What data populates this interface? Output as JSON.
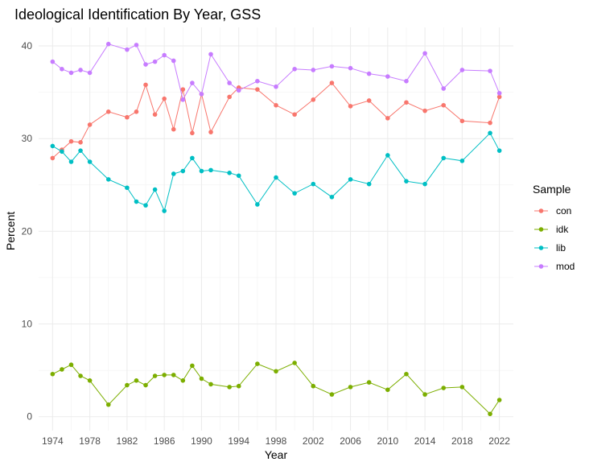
{
  "chart_data": {
    "type": "line",
    "title": "Ideological Identification By Year, GSS",
    "xlabel": "Year",
    "ylabel": "Percent",
    "xlim": [
      1972.5,
      2023.5
    ],
    "ylim": [
      -1.5,
      42.0
    ],
    "x_ticks": [
      1974,
      1978,
      1982,
      1986,
      1990,
      1994,
      1998,
      2002,
      2006,
      2010,
      2014,
      2018,
      2022
    ],
    "y_ticks": [
      0,
      10,
      20,
      30,
      40
    ],
    "grid": true,
    "legend": {
      "title": "Sample",
      "position": "right"
    },
    "x": [
      1974,
      1975,
      1976,
      1977,
      1978,
      1980,
      1982,
      1983,
      1984,
      1985,
      1986,
      1987,
      1988,
      1989,
      1990,
      1991,
      1993,
      1994,
      1996,
      1998,
      2000,
      2002,
      2004,
      2006,
      2008,
      2010,
      2012,
      2014,
      2016,
      2018,
      2021,
      2022
    ],
    "series": [
      {
        "name": "con",
        "color": "#F8766D",
        "values": [
          27.9,
          28.8,
          29.7,
          29.6,
          31.5,
          32.9,
          32.3,
          32.9,
          35.8,
          32.6,
          34.3,
          31.0,
          35.3,
          30.6,
          34.8,
          30.7,
          34.5,
          35.5,
          35.3,
          33.6,
          32.6,
          34.2,
          36.0,
          33.5,
          34.1,
          32.2,
          33.9,
          33.0,
          33.6,
          31.9,
          31.7,
          34.5
        ]
      },
      {
        "name": "idk",
        "color": "#7CAE00",
        "values": [
          4.6,
          5.1,
          5.6,
          4.4,
          3.9,
          1.3,
          3.4,
          3.9,
          3.4,
          4.4,
          4.5,
          4.5,
          3.9,
          5.5,
          4.1,
          3.5,
          3.2,
          3.3,
          5.7,
          4.9,
          5.8,
          3.3,
          2.4,
          3.2,
          3.7,
          2.9,
          4.6,
          2.4,
          3.1,
          3.2,
          0.3,
          1.8
        ]
      },
      {
        "name": "lib",
        "color": "#00BFC4",
        "values": [
          29.2,
          28.6,
          27.5,
          28.7,
          27.5,
          25.6,
          24.7,
          23.2,
          22.8,
          24.5,
          22.2,
          26.2,
          26.5,
          27.9,
          26.5,
          26.6,
          26.3,
          26.0,
          22.9,
          25.8,
          24.1,
          25.1,
          23.7,
          25.6,
          25.1,
          28.2,
          25.4,
          25.1,
          27.9,
          27.6,
          30.6,
          28.7
        ]
      },
      {
        "name": "mod",
        "color": "#C77CFF",
        "values": [
          38.3,
          37.5,
          37.1,
          37.4,
          37.1,
          40.2,
          39.6,
          40.1,
          38.0,
          38.3,
          39.0,
          38.4,
          34.2,
          36.0,
          34.8,
          39.1,
          36.0,
          35.2,
          36.2,
          35.6,
          37.5,
          37.4,
          37.8,
          37.6,
          37.0,
          36.7,
          36.2,
          39.2,
          35.4,
          37.4,
          37.3,
          34.9
        ]
      }
    ]
  }
}
